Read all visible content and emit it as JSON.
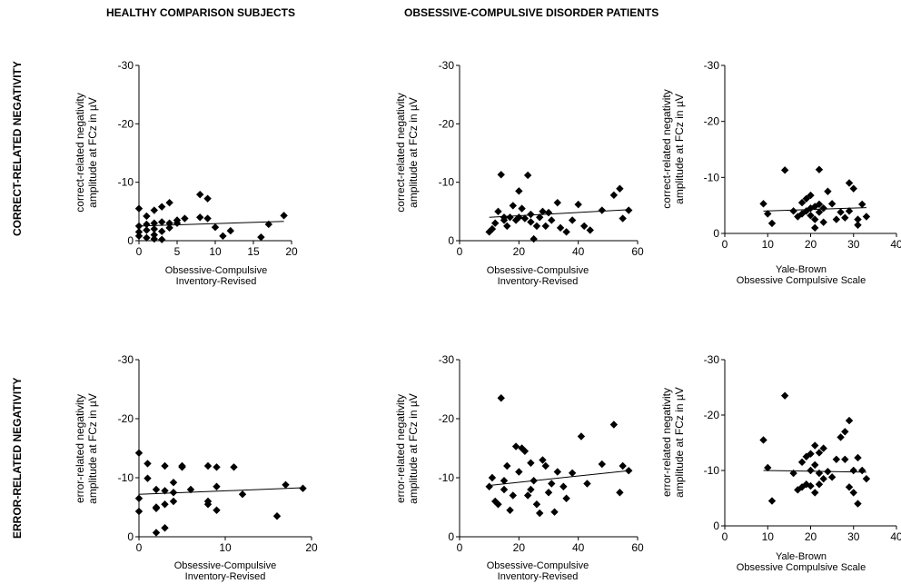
{
  "headers": {
    "col_healthy": "HEALTHY COMPARISON SUBJECTS",
    "col_ocd": "OBSESSIVE-COMPULSIVE DISORDER PATIENTS",
    "row_crn": "CORRECT-RELATED NEGATIVITY",
    "row_ern": "ERROR-RELATED NEGATIVITY"
  },
  "chart_data": [
    {
      "type": "scatter",
      "title": "",
      "ylabel": [
        "correct-related negativity",
        "amplitude at FCz in µV"
      ],
      "xlabel": [
        "Obsessive-Compulsive",
        "Inventory-Revised"
      ],
      "xlim": [
        0,
        20
      ],
      "ylim": [
        0,
        -30
      ],
      "xticks": [
        0,
        5,
        10,
        15,
        20
      ],
      "yticks": [
        0,
        -10,
        -20,
        -30
      ],
      "trend": [
        [
          0,
          -2.5
        ],
        [
          19,
          -3.3
        ]
      ],
      "x": [
        0,
        0,
        0,
        0,
        1,
        1,
        1,
        1,
        2,
        2,
        2,
        2,
        2,
        3,
        3,
        3,
        3,
        4,
        4,
        4,
        5,
        5,
        6,
        8,
        8,
        9,
        9,
        10,
        11,
        12,
        16,
        17,
        19
      ],
      "y": [
        -5.5,
        -2.5,
        -1.5,
        -0.8,
        -4.2,
        -2.8,
        -1.8,
        -0.5,
        -5.2,
        -3.0,
        -2.0,
        -1.0,
        -0.3,
        -5.8,
        -3.2,
        -1.6,
        -0.2,
        -6.5,
        -3.0,
        -2.2,
        -3.5,
        -3.0,
        -3.8,
        -7.9,
        -4.0,
        -7.2,
        -3.8,
        -2.3,
        -0.8,
        -1.7,
        -0.6,
        -2.8,
        -4.3
      ],
      "grid": false
    },
    {
      "type": "scatter",
      "title": "",
      "ylabel": [
        "correct-related negativity",
        "amplitude at FCz in µV"
      ],
      "xlabel": [
        "Obsessive-Compulsive",
        "Inventory-Revised"
      ],
      "xlim": [
        0,
        60
      ],
      "ylim": [
        0,
        -30
      ],
      "xticks": [
        0,
        20,
        40,
        60
      ],
      "yticks": [
        0,
        -10,
        -20,
        -30
      ],
      "trend": [
        [
          10,
          -4.0
        ],
        [
          57,
          -5.3
        ]
      ],
      "x": [
        10,
        11,
        12,
        13,
        14,
        15,
        15,
        16,
        17,
        18,
        19,
        20,
        20,
        21,
        22,
        23,
        24,
        24,
        25,
        26,
        27,
        28,
        29,
        30,
        31,
        33,
        34,
        36,
        38,
        40,
        42,
        44,
        48,
        52,
        54,
        55,
        57
      ],
      "y": [
        -1.5,
        -2.0,
        -3.0,
        -5.0,
        -11.3,
        -4.0,
        -3.5,
        -2.5,
        -4.0,
        -6.0,
        -3.5,
        -8.5,
        -4.0,
        -5.5,
        -3.8,
        -11.2,
        -4.5,
        -3.2,
        -0.3,
        -2.5,
        -4.0,
        -5.0,
        -2.5,
        -4.8,
        -3.5,
        -6.5,
        -2.2,
        -1.5,
        -3.5,
        -6.2,
        -2.5,
        -1.8,
        -5.2,
        -7.8,
        -8.9,
        -3.8,
        -5.2
      ],
      "grid": false
    },
    {
      "type": "scatter",
      "title": "",
      "ylabel": [
        "correct-related negativity",
        "amplitude at FCz in µV"
      ],
      "xlabel": [
        "Yale-Brown",
        "Obsessive Compulsive Scale"
      ],
      "xlim": [
        0,
        40
      ],
      "ylim": [
        0,
        -30
      ],
      "xticks": [
        0,
        10,
        20,
        30,
        40
      ],
      "yticks": [
        0,
        -10,
        -20,
        -30
      ],
      "trend": [
        [
          9,
          -4.0
        ],
        [
          33,
          -4.6
        ]
      ],
      "x": [
        9,
        10,
        11,
        14,
        16,
        17,
        18,
        18,
        19,
        19,
        20,
        20,
        20,
        21,
        21,
        21,
        22,
        22,
        22,
        23,
        23,
        24,
        25,
        26,
        27,
        28,
        29,
        29,
        30,
        31,
        31,
        32,
        33
      ],
      "y": [
        -5.3,
        -3.5,
        -1.8,
        -11.3,
        -4.0,
        -3.0,
        -5.5,
        -3.5,
        -6.2,
        -4.0,
        -6.8,
        -4.5,
        -3.2,
        -4.8,
        -2.5,
        -1.0,
        -11.4,
        -5.2,
        -3.8,
        -4.5,
        -2.0,
        -7.5,
        -5.3,
        -2.5,
        -3.8,
        -2.8,
        -9.0,
        -4.0,
        -8.0,
        -2.5,
        -1.5,
        -5.2,
        -3.0
      ],
      "grid": false
    },
    {
      "type": "scatter",
      "title": "",
      "ylabel": [
        "error-related negativity",
        "amplitude at FCz in µV"
      ],
      "xlabel": [
        "Obsessive-Compulsive",
        "Inventory-Revised"
      ],
      "xlim": [
        0,
        20
      ],
      "ylim": [
        0,
        -30
      ],
      "xticks": [
        0,
        10,
        20
      ],
      "yticks": [
        0,
        -10,
        -20,
        -30
      ],
      "trend": [
        [
          0,
          -7.2
        ],
        [
          19,
          -8.3
        ]
      ],
      "x": [
        0,
        0,
        0,
        1,
        1,
        2,
        2,
        2,
        2,
        3,
        3,
        3,
        3,
        4,
        4,
        4,
        5,
        5,
        6,
        8,
        8,
        8,
        9,
        9,
        9,
        11,
        12,
        16,
        17,
        19
      ],
      "y": [
        -14.2,
        -6.5,
        -4.3,
        -12.4,
        -9.9,
        -0.7,
        -5.0,
        -8.0,
        -4.8,
        -7.8,
        -5.5,
        -1.5,
        -12.0,
        -7.5,
        -6.0,
        -9.2,
        -11.8,
        -12.0,
        -8.0,
        -12.0,
        -5.5,
        -6.0,
        -11.8,
        -8.5,
        -4.5,
        -11.8,
        -7.2,
        -3.5,
        -8.8,
        -8.2
      ],
      "grid": false
    },
    {
      "type": "scatter",
      "title": "",
      "ylabel": [
        "error-related negativity",
        "amplitude at FCz in µV"
      ],
      "xlabel": [
        "Obsessive-Compulsive",
        "Inventory-Revised"
      ],
      "xlim": [
        0,
        60
      ],
      "ylim": [
        0,
        -30
      ],
      "xticks": [
        0,
        20,
        40,
        60
      ],
      "yticks": [
        0,
        -10,
        -20,
        -30
      ],
      "trend": [
        [
          10,
          -8.7
        ],
        [
          57,
          -11.2
        ]
      ],
      "x": [
        10,
        11,
        12,
        13,
        14,
        15,
        15,
        16,
        17,
        18,
        19,
        20,
        21,
        22,
        23,
        24,
        24,
        25,
        26,
        27,
        28,
        29,
        30,
        31,
        32,
        33,
        35,
        36,
        38,
        41,
        43,
        48,
        52,
        54,
        55,
        57
      ],
      "y": [
        -8.5,
        -10.0,
        -6.0,
        -5.5,
        -23.5,
        -8.0,
        -9.5,
        -12.0,
        -4.5,
        -7.0,
        -15.3,
        -11.0,
        -15.0,
        -14.5,
        -7.0,
        -12.5,
        -8.0,
        -9.5,
        -5.5,
        -4.0,
        -13.0,
        -12.0,
        -7.5,
        -9.0,
        -4.2,
        -11.0,
        -8.5,
        -6.5,
        -10.8,
        -17.0,
        -9.0,
        -12.3,
        -19.0,
        -7.5,
        -12.0,
        -11.2
      ],
      "grid": false
    },
    {
      "type": "scatter",
      "title": "",
      "ylabel": [
        "error-related negativity",
        "amplitude at FCz in µV"
      ],
      "xlabel": [
        "Yale-Brown",
        "Obsessive Compulsive Scale"
      ],
      "xlim": [
        0,
        40
      ],
      "ylim": [
        0,
        -30
      ],
      "xticks": [
        0,
        10,
        20,
        30,
        40
      ],
      "yticks": [
        0,
        -10,
        -20,
        -30
      ],
      "trend": [
        [
          9,
          -10.0
        ],
        [
          33,
          -9.7
        ]
      ],
      "x": [
        9,
        10,
        11,
        14,
        16,
        17,
        18,
        18,
        19,
        19,
        20,
        20,
        20,
        21,
        21,
        21,
        22,
        22,
        22,
        23,
        23,
        24,
        25,
        26,
        27,
        28,
        28,
        29,
        29,
        30,
        30,
        31,
        31,
        32,
        33
      ],
      "y": [
        -15.5,
        -10.5,
        -4.5,
        -23.5,
        -9.5,
        -6.5,
        -11.5,
        -7.0,
        -12.5,
        -7.5,
        -13.0,
        -10.0,
        -7.2,
        -14.5,
        -11.0,
        -6.0,
        -13.2,
        -9.5,
        -7.5,
        -14.0,
        -8.5,
        -9.8,
        -8.8,
        -12.0,
        -16.0,
        -17.0,
        -12.0,
        -7.0,
        -19.0,
        -6.0,
        -10.0,
        -4.0,
        -12.3,
        -10.0,
        -8.5
      ],
      "grid": false
    }
  ]
}
